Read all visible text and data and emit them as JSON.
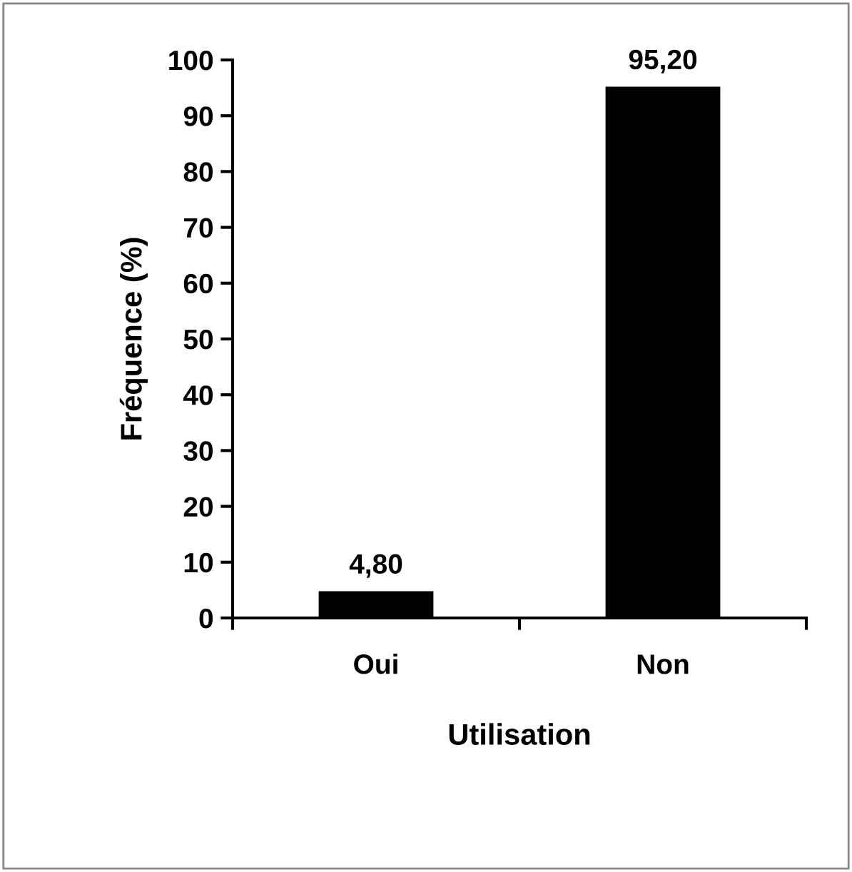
{
  "chart_data": {
    "type": "bar",
    "xlabel": "Utilisation",
    "ylabel": "Fréquence (%)",
    "categories": [
      "Oui",
      "Non"
    ],
    "values": [
      4.8,
      95.2
    ],
    "color": "#000000",
    "value_labels": [
      "4,80",
      "95,20"
    ],
    "ylim": [
      0,
      100
    ],
    "yticks": [
      0,
      10,
      20,
      30,
      40,
      50,
      60,
      70,
      80,
      90,
      100
    ],
    "grid": false,
    "legend": false
  }
}
